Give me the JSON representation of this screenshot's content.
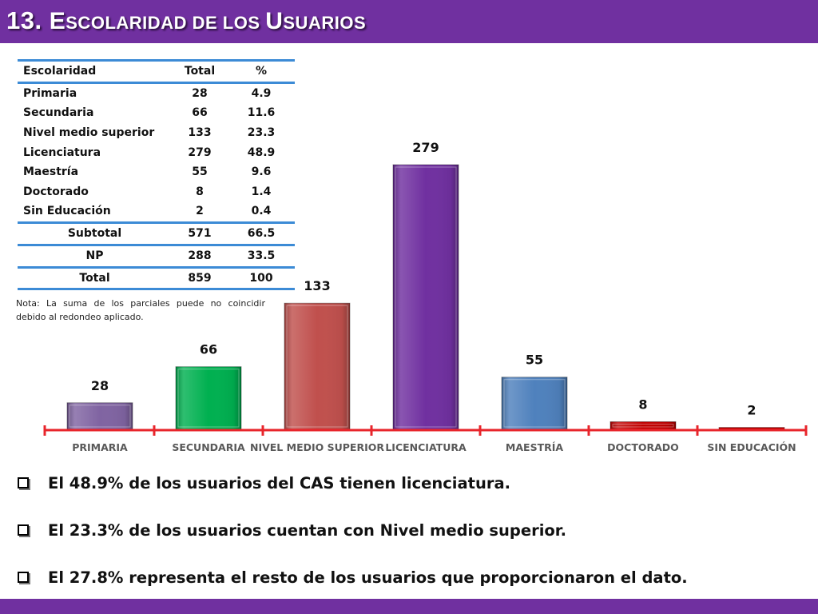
{
  "page_title": "13. Escolaridad de los Usuarios",
  "table": {
    "headers": [
      "Escolaridad",
      "Total",
      "%"
    ],
    "rows": [
      [
        "Primaria",
        "28",
        "4.9"
      ],
      [
        "Secundaria",
        "66",
        "11.6"
      ],
      [
        "Nivel medio superior",
        "133",
        "23.3"
      ],
      [
        "Licenciatura",
        "279",
        "48.9"
      ],
      [
        "Maestría",
        "55",
        "9.6"
      ],
      [
        "Doctorado",
        "8",
        "1.4"
      ],
      [
        "Sin Educación",
        "2",
        "0.4"
      ]
    ],
    "subtotal": [
      "Subtotal",
      "571",
      "66.5"
    ],
    "np": [
      "NP",
      "288",
      "33.5"
    ],
    "total": [
      "Total",
      "859",
      "100"
    ]
  },
  "note": "Nota: La suma de los parciales puede no coincidir debido al redondeo aplicado.",
  "chart_data": {
    "type": "bar",
    "categories": [
      "PRIMARIA",
      "SECUNDARIA",
      "NIVEL MEDIO SUPERIOR",
      "LICENCIATURA",
      "MAESTRÍA",
      "DOCTORADO",
      "SIN EDUCACIÓN"
    ],
    "values": [
      28,
      66,
      133,
      279,
      55,
      8,
      2
    ],
    "colors": [
      "#8064a2",
      "#00b050",
      "#c0504d",
      "#7030a0",
      "#4f81bd",
      "#c00000",
      "#c00000"
    ],
    "axis_color": "#e8252b",
    "title": "",
    "xlabel": "",
    "ylabel": "",
    "ylim": [
      0,
      279
    ]
  },
  "bullets": [
    "El 48.9% de los usuarios del CAS tienen licenciatura.",
    "El 23.3% de los usuarios cuentan con Nivel medio superior.",
    "El  27.8% representa el resto de los usuarios que proporcionaron el dato."
  ]
}
